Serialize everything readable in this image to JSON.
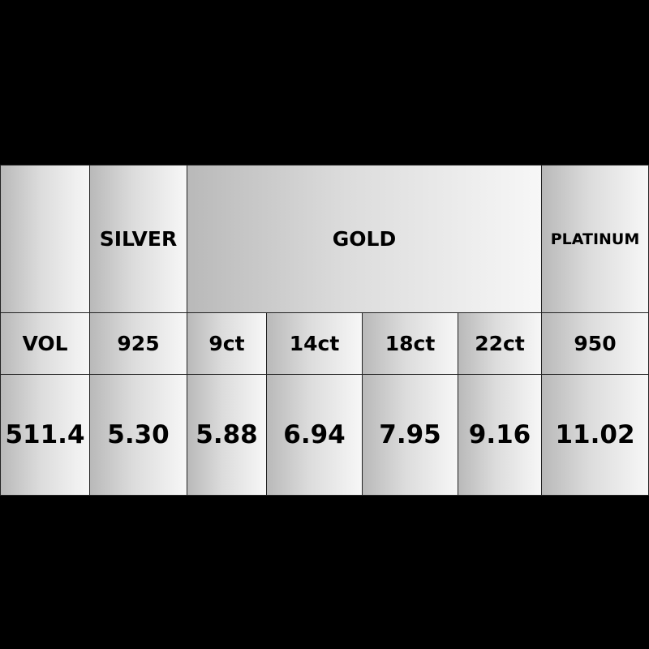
{
  "table": {
    "groups": [
      "",
      "SILVER",
      "GOLD",
      "PLATINUM"
    ],
    "subheaders": [
      "VOL",
      "925",
      "9ct",
      "14ct",
      "18ct",
      "22ct",
      "950"
    ],
    "values": [
      "511.4",
      "5.30",
      "5.88",
      "6.94",
      "7.95",
      "9.16",
      "11.02"
    ]
  }
}
